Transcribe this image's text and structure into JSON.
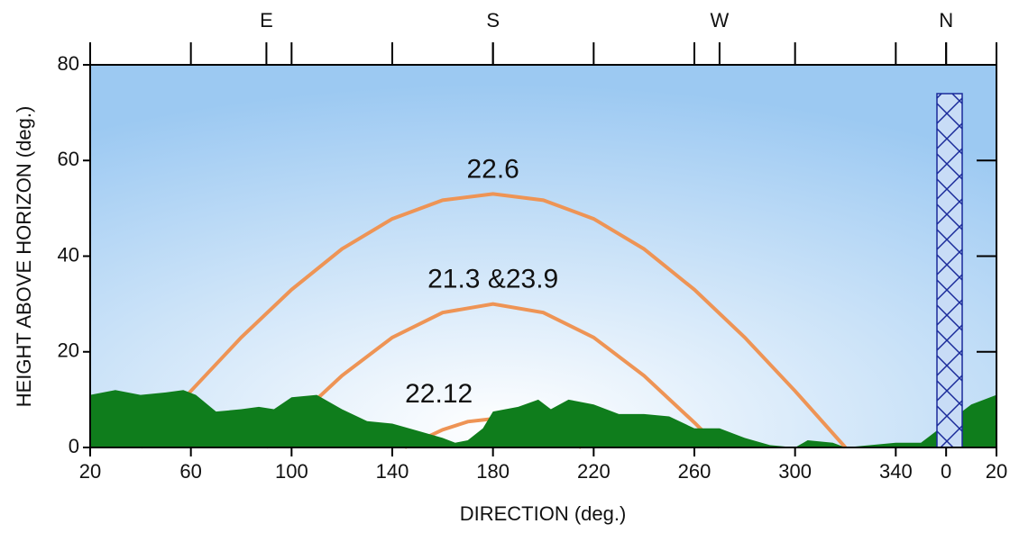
{
  "chart_data": {
    "type": "line",
    "x_label": "DIRECTION (deg.)",
    "y_label": "HEIGHT ABOVE  HORIZON (deg.)",
    "xlim": [
      20,
      380
    ],
    "ylim": [
      0,
      80
    ],
    "xticks": [
      20,
      60,
      100,
      140,
      180,
      220,
      260,
      300,
      340,
      {
        "value": 360,
        "label": "0"
      },
      {
        "value": 380,
        "label": "20"
      }
    ],
    "yticks": [
      0,
      20,
      40,
      60,
      80
    ],
    "compass": [
      {
        "value": 90,
        "label": "E"
      },
      {
        "value": 180,
        "label": "S"
      },
      {
        "value": 270,
        "label": "W"
      },
      {
        "value": 360,
        "label": "N"
      }
    ],
    "series": [
      {
        "color": "#ee9455",
        "x": [
          40,
          60,
          80,
          100,
          120,
          140,
          160,
          180,
          200,
          220,
          240,
          260,
          280,
          300,
          320
        ],
        "values": [
          0,
          11.8,
          23,
          33,
          41.5,
          47.8,
          51.7,
          53,
          51.7,
          47.8,
          41.5,
          33,
          23,
          11.8,
          0
        ]
      },
      {
        "color": "#ee9455",
        "x": [
          90,
          100,
          120,
          140,
          160,
          180,
          200,
          220,
          240,
          260,
          270
        ],
        "values": [
          0,
          5.2,
          15,
          23,
          28.2,
          30,
          28.2,
          23,
          15,
          5.2,
          0
        ]
      },
      {
        "color": "#ee9455",
        "x": [
          145,
          160,
          170,
          180,
          190,
          200,
          215
        ],
        "values": [
          0,
          3.7,
          5.4,
          6,
          5.4,
          3.7,
          0
        ]
      }
    ],
    "annotations": [
      "22.6",
      "21.3 &23.9",
      "22.12"
    ],
    "terrain": {
      "color": "#0f7d1c",
      "x": [
        20,
        30,
        40,
        50,
        57,
        62,
        70,
        80,
        87,
        93,
        100,
        110,
        120,
        130,
        140,
        150,
        160,
        165,
        170,
        176,
        180,
        190,
        198,
        203,
        210,
        220,
        230,
        240,
        250,
        260,
        270,
        280,
        290,
        300,
        305,
        315,
        320,
        330,
        340,
        350,
        360,
        370,
        380
      ],
      "values": [
        11,
        12,
        11,
        11.5,
        12,
        11,
        7.5,
        8,
        8.5,
        8,
        10.5,
        11,
        8,
        5.5,
        5,
        3.5,
        2,
        1,
        1.5,
        4,
        7.5,
        8.5,
        10,
        8,
        10,
        9,
        7,
        7,
        6.5,
        4,
        4,
        2,
        0.5,
        0,
        1.5,
        1,
        0,
        0.5,
        1,
        1,
        5,
        9,
        11
      ]
    }
  }
}
